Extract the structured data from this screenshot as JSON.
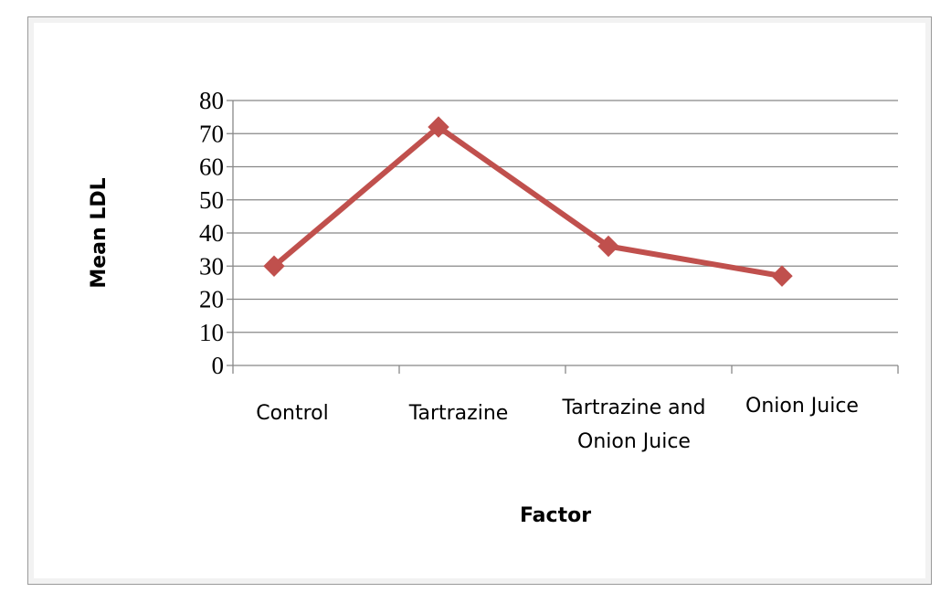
{
  "chart_data": {
    "type": "line",
    "title": "",
    "xlabel": "Factor",
    "ylabel": "Mean  LDL",
    "ylim": [
      0,
      80
    ],
    "yticks": [
      0,
      10,
      20,
      30,
      40,
      50,
      60,
      70,
      80
    ],
    "grid": true,
    "legend": "none",
    "categories": [
      [
        "Control"
      ],
      [
        "Tartrazine"
      ],
      [
        "Tartrazine and",
        "Onion Juice"
      ],
      [
        "Onion Juice"
      ]
    ],
    "series": [
      {
        "values": [
          30,
          72,
          36,
          27
        ],
        "color": "#c0504d",
        "marker": "diamond"
      }
    ]
  }
}
